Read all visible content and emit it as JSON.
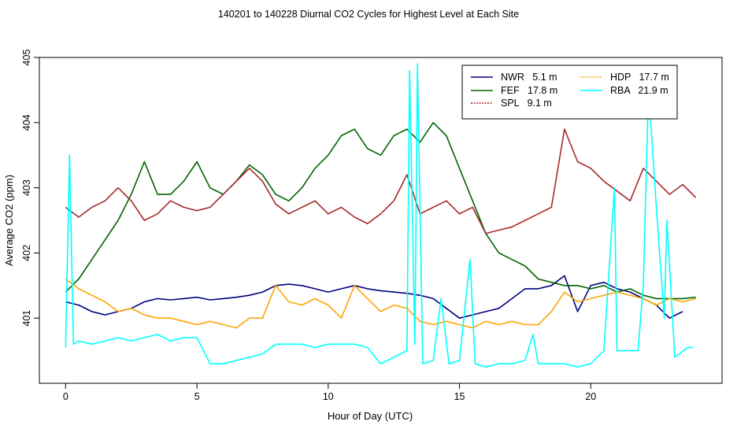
{
  "chart_data": {
    "type": "line",
    "title": "140201  to  140228 Diurnal CO2 Cycles for Highest Level at Each Site",
    "xlabel": "Hour of Day (UTC)",
    "ylabel": "Average CO2 (ppm)",
    "xlim": [
      -1,
      25
    ],
    "ylim": [
      400,
      405
    ],
    "xticks": [
      0,
      5,
      10,
      15,
      20
    ],
    "yticks": [
      401,
      402,
      403,
      404,
      405
    ],
    "grid": false,
    "legend_position": "top-right",
    "series": [
      {
        "name": "NWR   5.1 m",
        "color": "#00007f",
        "x": [
          0,
          0.5,
          1,
          1.5,
          2,
          2.5,
          3,
          3.5,
          4,
          4.5,
          5,
          5.5,
          6,
          6.5,
          7,
          7.5,
          8,
          8.5,
          9,
          9.5,
          10,
          10.5,
          11,
          11.5,
          12,
          12.5,
          13,
          13.5,
          14,
          14.5,
          15,
          15.5,
          16,
          16.5,
          17,
          17.5,
          18,
          18.5,
          19,
          19.5,
          20,
          20.5,
          21,
          21.5,
          22,
          22.5,
          23,
          23.5
        ],
        "y": [
          401.25,
          401.2,
          401.1,
          401.05,
          401.1,
          401.15,
          401.25,
          401.3,
          401.28,
          401.3,
          401.32,
          401.28,
          401.3,
          401.32,
          401.35,
          401.4,
          401.5,
          401.52,
          401.5,
          401.45,
          401.4,
          401.45,
          401.5,
          401.45,
          401.42,
          401.4,
          401.38,
          401.35,
          401.3,
          401.15,
          401.0,
          401.05,
          401.1,
          401.15,
          401.3,
          401.45,
          401.45,
          401.5,
          401.65,
          401.1,
          401.5,
          401.55,
          401.45,
          401.4,
          401.3,
          401.2,
          401.0,
          401.1
        ]
      },
      {
        "name": "FEF   17.8 m",
        "color": "#006400",
        "x": [
          0,
          0.5,
          1,
          1.5,
          2,
          2.5,
          3,
          3.5,
          4,
          4.5,
          5,
          5.5,
          6,
          6.5,
          7,
          7.5,
          8,
          8.5,
          9,
          9.5,
          10,
          10.5,
          11,
          11.5,
          12,
          12.5,
          13,
          13.5,
          14,
          14.5,
          15,
          15.5,
          16,
          16.5,
          17,
          17.5,
          18,
          18.5,
          19,
          19.5,
          20,
          20.5,
          21,
          21.5,
          22,
          22.5,
          23,
          23.5,
          24
        ],
        "y": [
          401.4,
          401.6,
          401.9,
          402.2,
          402.5,
          402.9,
          403.4,
          402.9,
          402.9,
          403.1,
          403.4,
          403.0,
          402.9,
          403.1,
          403.35,
          403.2,
          402.9,
          402.8,
          403.0,
          403.3,
          403.5,
          403.8,
          403.9,
          403.6,
          403.5,
          403.8,
          403.9,
          403.7,
          404.0,
          403.8,
          403.3,
          402.8,
          402.3,
          402.0,
          401.9,
          401.8,
          401.6,
          401.55,
          401.5,
          401.5,
          401.45,
          401.5,
          401.4,
          401.45,
          401.35,
          401.3,
          401.3,
          401.3,
          401.32
        ]
      },
      {
        "name": "SPL   9.1 m",
        "color": "#a52a2a",
        "x": [
          0,
          0.5,
          1,
          1.5,
          2,
          2.5,
          3,
          3.5,
          4,
          4.5,
          5,
          5.5,
          6,
          6.5,
          7,
          7.5,
          8,
          8.5,
          9,
          9.5,
          10,
          10.5,
          11,
          11.5,
          12,
          12.5,
          13,
          13.5,
          14,
          14.5,
          15,
          15.5,
          16,
          16.5,
          17,
          17.5,
          18,
          18.5,
          19,
          19.5,
          20,
          20.5,
          21,
          21.5,
          22,
          22.5,
          23,
          23.5,
          24
        ],
        "y": [
          402.7,
          402.55,
          402.7,
          402.8,
          403.0,
          402.8,
          402.5,
          402.6,
          402.8,
          402.7,
          402.65,
          402.7,
          402.9,
          403.1,
          403.3,
          403.1,
          402.75,
          402.6,
          402.7,
          402.8,
          402.6,
          402.7,
          402.55,
          402.45,
          402.6,
          402.8,
          403.2,
          402.6,
          402.7,
          402.8,
          402.6,
          402.7,
          402.3,
          402.35,
          402.4,
          402.5,
          402.6,
          402.7,
          403.9,
          403.4,
          403.3,
          403.1,
          402.95,
          402.8,
          403.3,
          403.1,
          402.9,
          403.05,
          402.85
        ]
      },
      {
        "name": "HDP   17.7 m",
        "color": "#ffa500",
        "x": [
          0,
          0.5,
          1,
          1.5,
          2,
          2.5,
          3,
          3.5,
          4,
          4.5,
          5,
          5.5,
          6,
          6.5,
          7,
          7.5,
          8,
          8.5,
          9,
          9.5,
          10,
          10.5,
          11,
          11.5,
          12,
          12.5,
          13,
          13.5,
          14,
          14.5,
          15,
          15.5,
          16,
          16.5,
          17,
          17.5,
          18,
          18.5,
          19,
          19.5,
          20,
          20.5,
          21,
          21.5,
          22,
          22.5,
          23,
          23.5,
          24
        ],
        "y": [
          401.6,
          401.45,
          401.35,
          401.25,
          401.1,
          401.15,
          401.05,
          401.0,
          401.0,
          400.95,
          400.9,
          400.95,
          400.9,
          400.85,
          401.0,
          401.0,
          401.5,
          401.25,
          401.2,
          401.3,
          401.2,
          401.0,
          401.5,
          401.3,
          401.1,
          401.2,
          401.15,
          400.95,
          400.9,
          400.95,
          400.9,
          400.85,
          400.95,
          400.9,
          400.95,
          400.9,
          400.9,
          401.1,
          401.4,
          401.25,
          401.3,
          401.35,
          401.4,
          401.35,
          401.3,
          401.2,
          401.3,
          401.25,
          401.3
        ]
      },
      {
        "name": "RBA   21.9 m",
        "color": "#00ffff",
        "x": [
          0,
          0.15,
          0.3,
          0.5,
          1,
          1.5,
          2,
          2.5,
          3,
          3.5,
          4,
          4.5,
          5,
          5.5,
          6,
          6.5,
          7,
          7.5,
          8,
          8.5,
          9,
          9.5,
          10,
          10.5,
          11,
          11.5,
          12,
          12.5,
          13,
          13.1,
          13.3,
          13.4,
          13.6,
          14,
          14.3,
          14.6,
          15,
          15.4,
          15.6,
          16,
          16.5,
          17,
          17.5,
          17.8,
          18,
          18.5,
          19,
          19.5,
          20,
          20.5,
          20.9,
          21,
          21.3,
          21.8,
          22,
          22.2,
          22.5,
          22.8,
          22.9,
          23.2,
          23.7,
          23.9
        ],
        "y": [
          400.55,
          403.5,
          400.6,
          400.65,
          400.6,
          400.65,
          400.7,
          400.65,
          400.7,
          400.75,
          400.65,
          400.7,
          400.7,
          400.3,
          400.3,
          400.35,
          400.4,
          400.45,
          400.6,
          400.6,
          400.6,
          400.55,
          400.6,
          400.6,
          400.6,
          400.55,
          400.3,
          400.4,
          400.5,
          404.8,
          400.6,
          404.9,
          400.3,
          400.35,
          401.3,
          400.3,
          400.35,
          401.9,
          400.3,
          400.25,
          400.3,
          400.3,
          400.35,
          400.75,
          400.3,
          400.3,
          400.3,
          400.25,
          400.3,
          400.5,
          403.0,
          400.5,
          400.5,
          400.5,
          401.5,
          404.5,
          402.7,
          401.0,
          402.5,
          400.4,
          400.55,
          400.55
        ]
      }
    ]
  }
}
